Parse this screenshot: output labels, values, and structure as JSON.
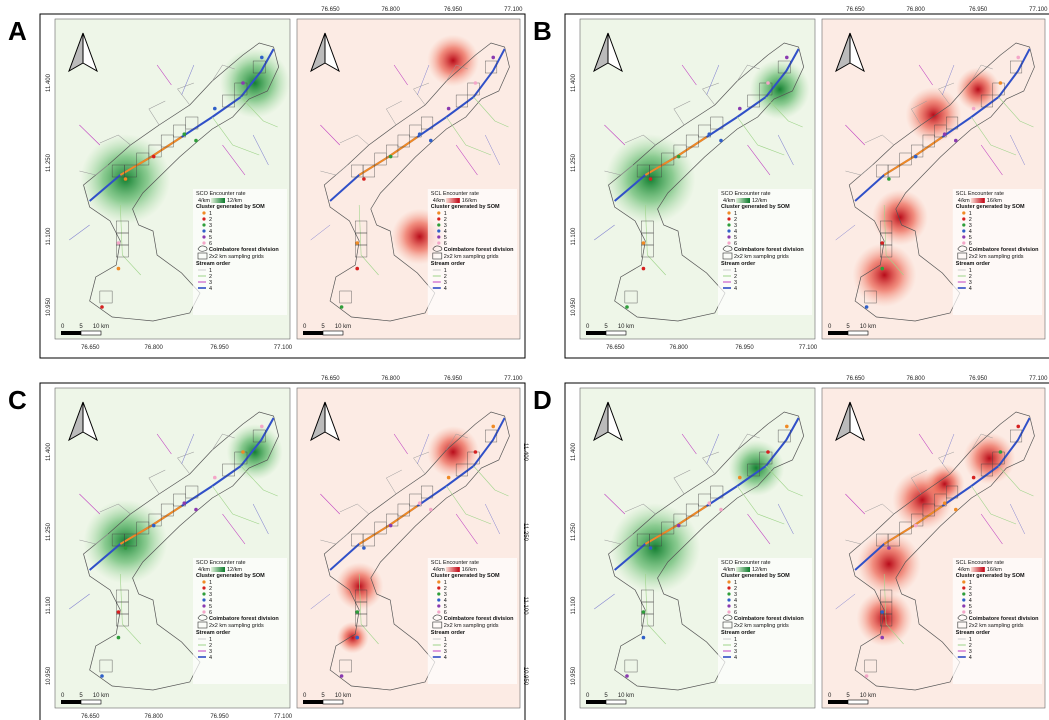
{
  "panels": [
    {
      "label": "A",
      "top_axis": [
        "76.650",
        "76.800",
        "76.950",
        "77.100"
      ],
      "bottom_axis": [
        "76.650",
        "76.800",
        "76.950",
        "77.100"
      ],
      "left_axis": [
        "11.400",
        "11.250",
        "11.100",
        "10.950"
      ],
      "maps": [
        {
          "legend": {
            "rate_title": "SCO Encounter rate",
            "rate_low": "4/km",
            "rate_high": "12/km",
            "cluster_title": "Cluster generated by SOM",
            "clusters": [
              "1",
              "2",
              "3",
              "4",
              "5",
              "6"
            ],
            "boundary": "Coimbatore forest division",
            "grids": "2x2 km sampling grids",
            "stream_title": "Stream order",
            "streams": [
              "1",
              "2",
              "3",
              "4"
            ]
          },
          "scale": [
            "0",
            "5",
            "10 km"
          ]
        },
        {
          "legend": {
            "rate_title": "SCL Encounter rate",
            "rate_low": "4/km",
            "rate_high": "16/km",
            "cluster_title": "Cluster generated by SOM",
            "clusters": [
              "1",
              "2",
              "3",
              "4",
              "5",
              "6"
            ],
            "boundary": "Coimbatore forest division",
            "grids": "2x2 km sampling grids",
            "stream_title": "Stream order",
            "streams": [
              "1",
              "2",
              "3",
              "4"
            ]
          },
          "scale": [
            "0",
            "5",
            "10 km"
          ]
        }
      ]
    },
    {
      "label": "B",
      "top_axis": [
        "76.650",
        "76.800",
        "76.950",
        "77.100"
      ],
      "bottom_axis": [
        "76.650",
        "76.800",
        "76.950",
        "77.100"
      ],
      "left_axis": [
        "11.400",
        "11.250",
        "11.100",
        "10.950"
      ],
      "maps": [
        {
          "legend": {
            "rate_title": "SCO Encounter rate",
            "rate_low": "4/km",
            "rate_high": "12/km",
            "cluster_title": "Cluster generated by SOM",
            "clusters": [
              "1",
              "2",
              "3",
              "4",
              "5",
              "6"
            ],
            "boundary": "Coimbatore forest division",
            "grids": "2x2 km sampling grids",
            "stream_title": "Stream order",
            "streams": [
              "1",
              "2",
              "3",
              "4"
            ]
          },
          "scale": [
            "0",
            "5",
            "10 km"
          ]
        },
        {
          "legend": {
            "rate_title": "SCL Encounter rate",
            "rate_low": "4/km",
            "rate_high": "16/km",
            "cluster_title": "Cluster generated by SOM",
            "clusters": [
              "1",
              "2",
              "3",
              "4",
              "5",
              "6"
            ],
            "boundary": "Coimbatore forest division",
            "grids": "2x2 km sampling grids",
            "stream_title": "Stream order",
            "streams": [
              "1",
              "2",
              "3",
              "4"
            ]
          },
          "scale": [
            "0",
            "5",
            "10 km"
          ]
        }
      ]
    },
    {
      "label": "C",
      "top_axis": [
        "76.650",
        "76.800",
        "76.950",
        "77.100"
      ],
      "bottom_axis": [
        "76.650",
        "76.800",
        "76.950",
        "77.100"
      ],
      "left_axis": [
        "11.400",
        "11.250",
        "11.100",
        "10.950"
      ],
      "right_axis": [
        "11.400",
        "11.250",
        "11.100",
        "10.950"
      ],
      "maps": [
        {
          "legend": {
            "rate_title": "SCO Encounter rate",
            "rate_low": "4/km",
            "rate_high": "12/km",
            "cluster_title": "Cluster generated by SOM",
            "clusters": [
              "1",
              "2",
              "3",
              "4",
              "5",
              "6"
            ],
            "boundary": "Coimbatore forest division",
            "grids": "2x2 km sampling grids",
            "stream_title": "Stream order",
            "streams": [
              "1",
              "2",
              "3",
              "4"
            ]
          },
          "scale": [
            "0",
            "5",
            "10 km"
          ]
        },
        {
          "legend": {
            "rate_title": "SCL Encounter rate",
            "rate_low": "4/km",
            "rate_high": "16/km",
            "cluster_title": "Cluster generated by SOM",
            "clusters": [
              "1",
              "2",
              "3",
              "4",
              "5",
              "6"
            ],
            "boundary": "Coimbatore forest division",
            "grids": "2x2 km sampling grids",
            "stream_title": "Stream order",
            "streams": [
              "1",
              "2",
              "3",
              "4"
            ]
          },
          "scale": [
            "0",
            "5",
            "10 km"
          ]
        }
      ]
    },
    {
      "label": "D",
      "top_axis": [
        "76.650",
        "76.800",
        "76.950",
        "77.100"
      ],
      "left_axis": [
        "11.400",
        "11.250",
        "11.100",
        "10.950"
      ],
      "maps": [
        {
          "legend": {
            "rate_title": "SCO Encounter rate",
            "rate_low": "4/km",
            "rate_high": "12/km",
            "cluster_title": "Cluster generated by SOM",
            "clusters": [
              "1",
              "2",
              "3",
              "4",
              "5",
              "6"
            ],
            "boundary": "Coimbatore forest division",
            "grids": "2x2 km sampling grids",
            "stream_title": "Stream order",
            "streams": [
              "1",
              "2",
              "3",
              "4"
            ]
          },
          "scale": [
            "0",
            "5",
            "10 km"
          ]
        },
        {
          "legend": {
            "rate_title": "SCL Encounter rate",
            "rate_low": "4/km",
            "rate_high": "16/km",
            "cluster_title": "Cluster generated by SOM",
            "clusters": [
              "1",
              "2",
              "3",
              "4",
              "5",
              "6"
            ],
            "boundary": "Coimbatore forest division",
            "grids": "2x2 km sampling grids",
            "stream_title": "Stream order",
            "streams": [
              "1",
              "2",
              "3",
              "4"
            ]
          },
          "scale": [
            "0",
            "5",
            "10 km"
          ]
        }
      ]
    }
  ]
}
